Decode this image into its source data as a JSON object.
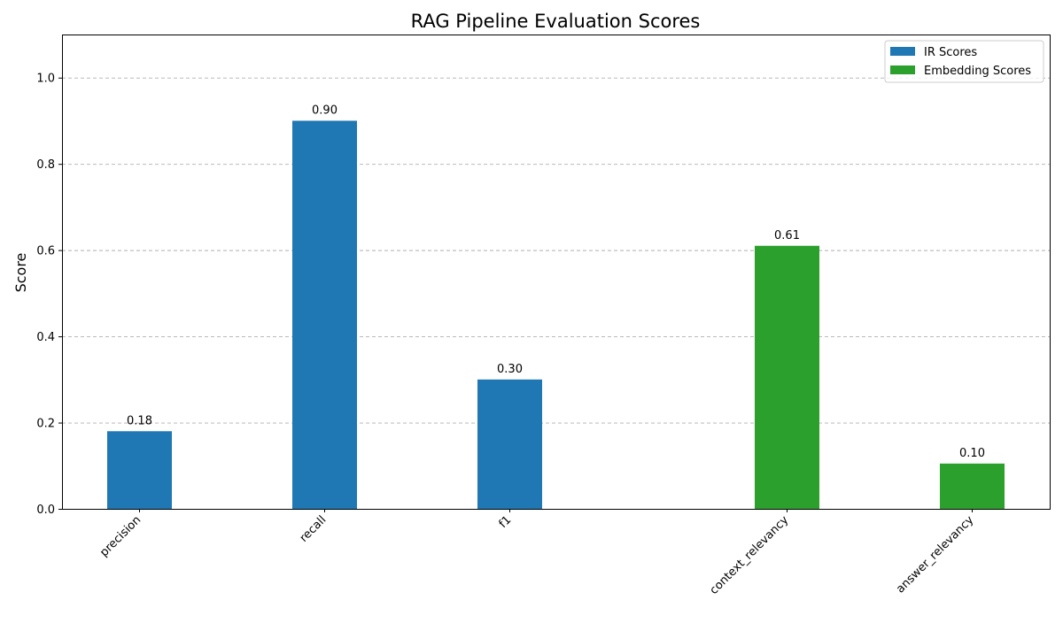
{
  "chart_data": {
    "type": "bar",
    "title": "RAG Pipeline Evaluation Scores",
    "xlabel": "",
    "ylabel": "Score",
    "ylim": [
      0,
      1.1
    ],
    "yticks": [
      0.0,
      0.2,
      0.4,
      0.6,
      0.8,
      1.0
    ],
    "ytick_labels": [
      "0.0",
      "0.2",
      "0.4",
      "0.6",
      "0.8",
      "1.0"
    ],
    "grid": "y-dashed",
    "legend_position": "top-right",
    "series": [
      {
        "name": "IR Scores",
        "color": "#1f77b4",
        "categories": [
          "precision",
          "recall",
          "f1"
        ],
        "values": [
          0.18,
          0.9,
          0.3
        ],
        "labels": [
          "0.18",
          "0.90",
          "0.30"
        ]
      },
      {
        "name": "Embedding Scores",
        "color": "#2ca02c",
        "categories": [
          "context_relevancy",
          "answer_relevancy"
        ],
        "values": [
          0.61,
          0.105
        ],
        "labels": [
          "0.61",
          "0.10"
        ]
      }
    ]
  }
}
